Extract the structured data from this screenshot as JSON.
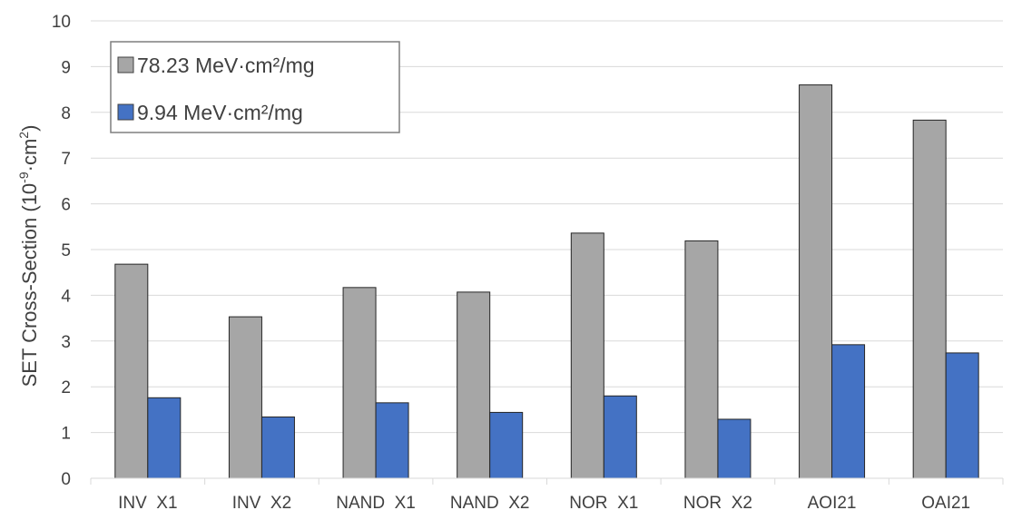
{
  "chart_data": {
    "type": "bar",
    "categories": [
      "INV  X1",
      "INV  X2",
      "NAND  X1",
      "NAND  X2",
      "NOR  X1",
      "NOR  X2",
      "AOI21",
      "OAI21"
    ],
    "series": [
      {
        "name": "78.23 MeV·cm²/mg",
        "values": [
          4.68,
          3.53,
          4.17,
          4.07,
          5.36,
          5.19,
          8.6,
          7.83
        ],
        "color": "#a6a6a6"
      },
      {
        "name": "9.94 MeV·cm²/mg",
        "values": [
          1.76,
          1.34,
          1.65,
          1.44,
          1.8,
          1.29,
          2.92,
          2.74
        ],
        "color": "#4472c4"
      }
    ],
    "ylabel_main": "SET Cross-Section (10",
    "ylabel_exp": "-9",
    "ylabel_unit": "·cm",
    "ylabel_sq": "2",
    "ylabel_end": ")",
    "ylim": [
      0,
      10
    ],
    "yticks": [
      0,
      1,
      2,
      3,
      4,
      5,
      6,
      7,
      8,
      9,
      10
    ],
    "grid": true,
    "legend_position": "top-left"
  }
}
